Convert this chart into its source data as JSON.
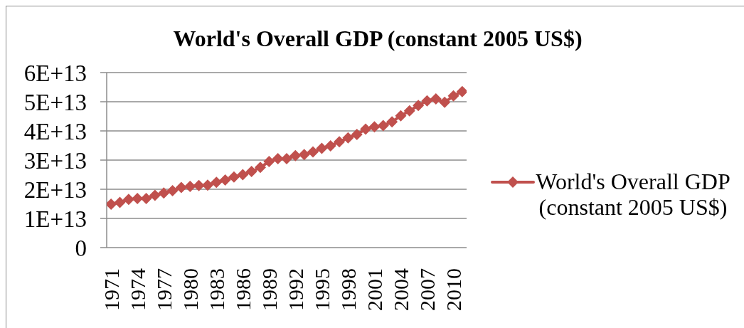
{
  "chart_data": {
    "type": "line",
    "title": "World's Overall GDP (constant 2005 US$)",
    "categories": [
      "1971",
      null,
      null,
      "1974",
      null,
      null,
      "1977",
      null,
      null,
      "1980",
      null,
      null,
      "1983",
      null,
      null,
      "1986",
      null,
      null,
      "1989",
      null,
      null,
      "1992",
      null,
      null,
      "1995",
      null,
      null,
      "1998",
      null,
      null,
      "2001",
      null,
      null,
      "2004",
      null,
      null,
      "2007",
      null,
      null,
      "2010",
      null
    ],
    "series": [
      {
        "name": "World's Overall GDP (constant 2005 US$)",
        "color": "#c0504d",
        "values": [
          14900000000000.0,
          15500000000000.0,
          16500000000000.0,
          16800000000000.0,
          16800000000000.0,
          17900000000000.0,
          18700000000000.0,
          19500000000000.0,
          20600000000000.0,
          21000000000000.0,
          21300000000000.0,
          21400000000000.0,
          22400000000000.0,
          23200000000000.0,
          24200000000000.0,
          25000000000000.0,
          26100000000000.0,
          27500000000000.0,
          29500000000000.0,
          30500000000000.0,
          30500000000000.0,
          31500000000000.0,
          31900000000000.0,
          32800000000000.0,
          34000000000000.0,
          34900000000000.0,
          36300000000000.0,
          37600000000000.0,
          38800000000000.0,
          40600000000000.0,
          41400000000000.0,
          41800000000000.0,
          43100000000000.0,
          45200000000000.0,
          46900000000000.0,
          48700000000000.0,
          50300000000000.0,
          51000000000000.0,
          49800000000000.0,
          52000000000000.0,
          53500000000000.0
        ]
      }
    ],
    "ylim": [
      0,
      60000000000000.0
    ],
    "yticks": [
      0,
      {
        "value": 10000000000000.0,
        "label": "1E+13"
      },
      {
        "value": 20000000000000.0,
        "label": "2E+13"
      },
      {
        "value": 30000000000000.0,
        "label": "3E+13"
      },
      {
        "value": 40000000000000.0,
        "label": "4E+13"
      },
      {
        "value": 50000000000000.0,
        "label": "5E+13"
      },
      {
        "value": 60000000000000.0,
        "label": "6E+13"
      }
    ],
    "grid": "y",
    "legend": "right",
    "marker": "diamond",
    "line_style": "solid"
  }
}
